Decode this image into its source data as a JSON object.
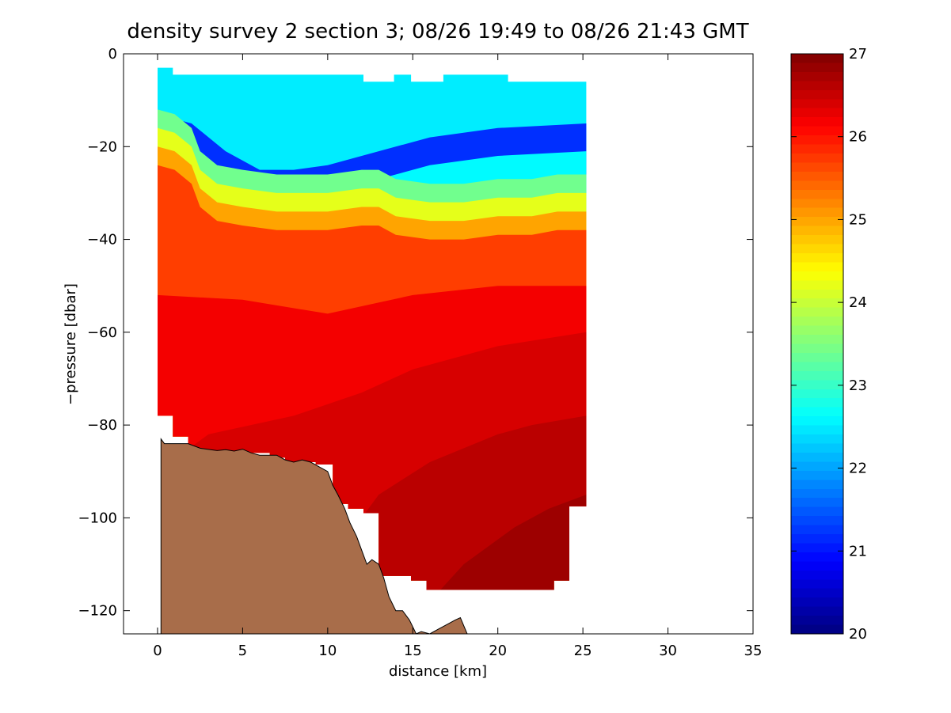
{
  "chart_data": {
    "type": "heatmap",
    "title": "density survey 2 section 3; 08/26 19:49 to 08/26 21:43 GMT",
    "xlabel": "distance [km]",
    "ylabel": "−pressure [dbar]",
    "xlim": [
      -2,
      35
    ],
    "ylim": [
      -125,
      0
    ],
    "xticks": [
      0,
      5,
      10,
      15,
      20,
      25,
      30,
      35
    ],
    "yticks": [
      0,
      -20,
      -40,
      -60,
      -80,
      -100,
      -120
    ],
    "colorbar": {
      "range": [
        20,
        27
      ],
      "ticks": [
        20,
        21,
        22,
        23,
        24,
        25,
        26,
        27
      ],
      "colormap": "jet"
    },
    "grid": false,
    "colors": {
      "bathymetry_fill": "#a86d4a",
      "axis": "#000000",
      "background": "#ffffff"
    },
    "data_top_boundary": [
      [
        0,
        -3
      ],
      [
        0.9,
        -3
      ],
      [
        0.9,
        -4.5
      ],
      [
        12.1,
        -4.5
      ],
      [
        12.1,
        -6
      ],
      [
        13.9,
        -6
      ],
      [
        13.9,
        -4.5
      ],
      [
        14.9,
        -4.5
      ],
      [
        14.9,
        -6
      ],
      [
        16.8,
        -6
      ],
      [
        16.8,
        -4.5
      ],
      [
        20.6,
        -4.5
      ],
      [
        20.6,
        -6
      ],
      [
        25.2,
        -6
      ]
    ],
    "data_bottom_boundary": [
      [
        25.2,
        -97.5
      ],
      [
        24.2,
        -97.5
      ],
      [
        24.2,
        -113.5
      ],
      [
        23.3,
        -113.5
      ],
      [
        23.3,
        -115.5
      ],
      [
        15.8,
        -115.5
      ],
      [
        15.8,
        -113.5
      ],
      [
        14.9,
        -113.5
      ],
      [
        14.9,
        -112.5
      ],
      [
        13.0,
        -112.5
      ],
      [
        13.0,
        -99
      ],
      [
        12.1,
        -99
      ],
      [
        12.1,
        -98
      ],
      [
        11.2,
        -98
      ],
      [
        11.2,
        -97
      ],
      [
        10.3,
        -97
      ],
      [
        10.3,
        -88.5
      ],
      [
        9.3,
        -88.5
      ],
      [
        9.3,
        -88
      ],
      [
        7.5,
        -88
      ],
      [
        7.5,
        -87
      ],
      [
        6.6,
        -87
      ],
      [
        6.6,
        -86
      ],
      [
        1.8,
        -86
      ],
      [
        1.8,
        -82.5
      ],
      [
        0.9,
        -82.5
      ],
      [
        0.9,
        -78
      ],
      [
        0,
        -78
      ]
    ],
    "pycnocline_depth": [
      [
        0,
        -18
      ],
      [
        1,
        -19
      ],
      [
        2,
        -22
      ],
      [
        2.5,
        -27
      ],
      [
        3.5,
        -30
      ],
      [
        5,
        -31
      ],
      [
        7,
        -32
      ],
      [
        10,
        -32
      ],
      [
        12,
        -31
      ],
      [
        13,
        -31
      ],
      [
        14,
        -33
      ],
      [
        16,
        -34
      ],
      [
        18,
        -34
      ],
      [
        20,
        -33
      ],
      [
        22,
        -33
      ],
      [
        23.5,
        -32
      ],
      [
        25.2,
        -32
      ]
    ],
    "surface_minimum_front": [
      [
        0,
        -13
      ],
      [
        2,
        -15
      ],
      [
        4,
        -21
      ],
      [
        6,
        -25
      ],
      [
        8,
        -25
      ],
      [
        10,
        -24
      ],
      [
        12,
        -22
      ],
      [
        14,
        -20
      ],
      [
        16,
        -18
      ],
      [
        20,
        -16
      ],
      [
        25.2,
        -15
      ]
    ],
    "deep_layers": [
      {
        "density": 26.2,
        "points": [
          [
            0,
            -52
          ],
          [
            5,
            -53
          ],
          [
            10,
            -56
          ],
          [
            15,
            -52
          ],
          [
            20,
            -50
          ],
          [
            25.2,
            -50
          ]
        ]
      },
      {
        "density": 26.4,
        "points": [
          [
            0,
            -90
          ],
          [
            3,
            -82
          ],
          [
            8,
            -78
          ],
          [
            12,
            -73
          ],
          [
            15,
            -68
          ],
          [
            20,
            -63
          ],
          [
            25.2,
            -60
          ]
        ]
      },
      {
        "density": 26.6,
        "points": [
          [
            10,
            -110
          ],
          [
            13,
            -95
          ],
          [
            16,
            -88
          ],
          [
            20,
            -82
          ],
          [
            22,
            -80
          ],
          [
            25.2,
            -78
          ]
        ]
      },
      {
        "density": 26.8,
        "points": [
          [
            16,
            -118
          ],
          [
            18,
            -110
          ],
          [
            21,
            -102
          ],
          [
            23,
            -98
          ],
          [
            25.2,
            -95
          ]
        ]
      }
    ],
    "bathymetry": [
      [
        0.2,
        -83
      ],
      [
        0.4,
        -84
      ],
      [
        0.8,
        -84
      ],
      [
        1.8,
        -84
      ],
      [
        2.5,
        -85
      ],
      [
        3.5,
        -85.5
      ],
      [
        4.0,
        -85.3
      ],
      [
        4.5,
        -85.6
      ],
      [
        5.0,
        -85.2
      ],
      [
        5.5,
        -86
      ],
      [
        6.0,
        -86.5
      ],
      [
        7.0,
        -86.5
      ],
      [
        7.5,
        -87.5
      ],
      [
        8.0,
        -88
      ],
      [
        8.5,
        -87.5
      ],
      [
        9.0,
        -88
      ],
      [
        9.5,
        -89
      ],
      [
        10.0,
        -90
      ],
      [
        10.3,
        -93
      ],
      [
        10.6,
        -95
      ],
      [
        11.0,
        -98
      ],
      [
        11.3,
        -101
      ],
      [
        11.7,
        -104
      ],
      [
        12.0,
        -107
      ],
      [
        12.3,
        -110
      ],
      [
        12.6,
        -109
      ],
      [
        13.0,
        -110
      ],
      [
        13.3,
        -113
      ],
      [
        13.6,
        -117
      ],
      [
        14.0,
        -120
      ],
      [
        14.4,
        -120
      ],
      [
        14.8,
        -122
      ],
      [
        15.2,
        -125
      ],
      [
        15.5,
        -124.5
      ],
      [
        16.0,
        -125
      ],
      [
        16.5,
        -124
      ],
      [
        17.0,
        -123
      ],
      [
        17.5,
        -122
      ],
      [
        17.8,
        -121.5
      ],
      [
        18.2,
        -125
      ]
    ]
  }
}
